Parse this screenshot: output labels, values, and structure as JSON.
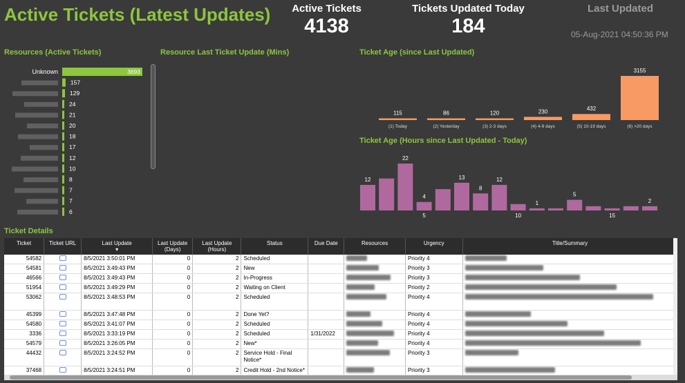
{
  "header": {
    "title": "Active Tickets (Latest Updates)",
    "active_tickets_label": "Active Tickets",
    "active_tickets_value": "4138",
    "updated_today_label": "Tickets Updated Today",
    "updated_today_value": "184",
    "last_updated_label": "Last Updated",
    "last_updated_value": "05-Aug-2021 04:50:36 PM"
  },
  "sections": {
    "resources": "Resources (Active Tickets)",
    "resource_last_update": "Resource Last Ticket Update (Mins)",
    "ticket_age": "Ticket Age (since Last Updated)",
    "ticket_age_hours": "Ticket Age (Hours since Last Updated - Today)",
    "ticket_details": "Ticket Details"
  },
  "colors": {
    "accent": "#8dc63f",
    "orange": "#f79a63",
    "purple": "#b0699e",
    "bg": "#3a3a3a"
  },
  "chart_data": [
    {
      "type": "bar",
      "title": "Resources (Active Tickets)",
      "categories": [
        "Unknown",
        "",
        "",
        "",
        "",
        "",
        "",
        "",
        "",
        "",
        "",
        "",
        "",
        ""
      ],
      "values": [
        3693,
        157,
        129,
        24,
        21,
        20,
        18,
        17,
        12,
        10,
        8,
        7,
        7,
        6
      ]
    },
    {
      "type": "bar",
      "title": "Ticket Age (since Last Updated)",
      "categories": [
        "(1) Today",
        "(2) Yesterday",
        "(3) 2-3 days",
        "(4) 4-9 days",
        "(5) 10-19 days",
        "(6) >20 days"
      ],
      "values": [
        115,
        86,
        120,
        230,
        432,
        3155
      ]
    },
    {
      "type": "bar",
      "title": "Ticket Age (Hours since Last Updated - Today)",
      "values": [
        12,
        15,
        22,
        4,
        10,
        13,
        8,
        12,
        3,
        1,
        1,
        5,
        2,
        1,
        2,
        2
      ],
      "labels": [
        "12",
        "",
        "22",
        "4",
        "",
        "13",
        "8",
        "12",
        "",
        "1",
        "",
        "5",
        "",
        "",
        "",
        "2"
      ],
      "below_labels": [
        "",
        "",
        "",
        "5",
        "",
        "",
        "",
        "",
        "10",
        "",
        "",
        "",
        "",
        "15",
        "",
        ""
      ]
    }
  ],
  "table": {
    "columns": [
      "Ticket",
      "Ticket URL",
      "Last Update",
      "Last Update (Days)",
      "Last Update (Hours)",
      "Status",
      "Due Date",
      "Resources",
      "Urgency",
      "Title/Summary"
    ],
    "rows": [
      {
        "ticket": "54582",
        "last_update": "8/5/2021 3:50:01 PM",
        "days": "0",
        "hours": "2",
        "status": "Scheduled",
        "due": "",
        "urgency": "Priority 4",
        "tall": false
      },
      {
        "ticket": "54581",
        "last_update": "8/5/2021 3:49:43 PM",
        "days": "0",
        "hours": "2",
        "status": "New",
        "due": "",
        "urgency": "Priority 3",
        "tall": false
      },
      {
        "ticket": "46566",
        "last_update": "8/5/2021 3:49:43 PM",
        "days": "0",
        "hours": "2",
        "status": "In-Progress",
        "due": "",
        "urgency": "Priority 3",
        "tall": false
      },
      {
        "ticket": "51954",
        "last_update": "8/5/2021 3:49:29 PM",
        "days": "0",
        "hours": "2",
        "status": "Waiting on Client",
        "due": "",
        "urgency": "Priority 2",
        "tall": false
      },
      {
        "ticket": "53062",
        "last_update": "8/5/2021 3:48:53 PM",
        "days": "0",
        "hours": "2",
        "status": "Scheduled",
        "due": "",
        "urgency": "Priority 4",
        "tall": true
      },
      {
        "ticket": "45399",
        "last_update": "8/5/2021 3:47:48 PM",
        "days": "0",
        "hours": "2",
        "status": "Done Yet?",
        "due": "",
        "urgency": "Priority 4",
        "tall": false
      },
      {
        "ticket": "54580",
        "last_update": "8/5/2021 3:41:07 PM",
        "days": "0",
        "hours": "2",
        "status": "Scheduled",
        "due": "",
        "urgency": "Priority 4",
        "tall": false
      },
      {
        "ticket": "3336",
        "last_update": "8/5/2021 3:33:19 PM",
        "days": "0",
        "hours": "2",
        "status": "Scheduled",
        "due": "1/31/2022",
        "urgency": "Priority 4",
        "tall": false
      },
      {
        "ticket": "54579",
        "last_update": "8/5/2021 3:26:05 PM",
        "days": "0",
        "hours": "2",
        "status": "New*",
        "due": "",
        "urgency": "Priority 4",
        "tall": false
      },
      {
        "ticket": "44432",
        "last_update": "8/5/2021 3:24:52 PM",
        "days": "0",
        "hours": "2",
        "status": "Service Hold - Final Notice*",
        "due": "",
        "urgency": "Priority 3",
        "tall": true
      },
      {
        "ticket": "37468",
        "last_update": "8/5/2021 3:24:51 PM",
        "days": "0",
        "hours": "2",
        "status": "Credit Hold - 2nd Notice*",
        "due": "",
        "urgency": "Priority 3",
        "tall": true
      }
    ]
  }
}
